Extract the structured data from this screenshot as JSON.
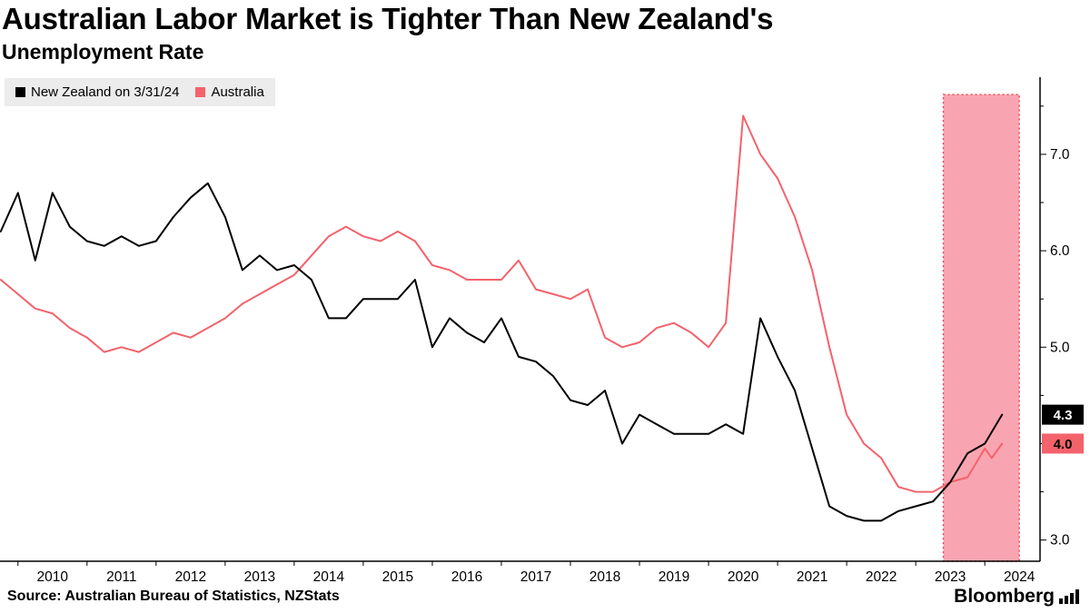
{
  "header": {
    "title": "Australian Labor Market is Tighter Than New Zealand's",
    "subtitle": "Unemployment Rate"
  },
  "legend": {
    "items": [
      {
        "id": "new-zealand",
        "label": "New Zealand on 3/31/24",
        "color": "#000000"
      },
      {
        "id": "australia",
        "label": "Australia",
        "color": "#f4626b"
      }
    ]
  },
  "chart_data": {
    "type": "line",
    "title": "Australian Labor Market is Tighter Than New Zealand's",
    "subtitle": "Unemployment Rate",
    "xlim": [
      2009.74,
      2024.8
    ],
    "ylim": [
      2.78,
      7.8
    ],
    "x_axis": {
      "tick_years": [
        2010,
        2011,
        2012,
        2013,
        2014,
        2015,
        2016,
        2017,
        2018,
        2019,
        2020,
        2021,
        2022,
        2023,
        2024
      ]
    },
    "y_axis": {
      "position": "right",
      "major_ticks": [
        3.0,
        4.0,
        5.0,
        6.0,
        7.0
      ],
      "major_labels": [
        "3.0",
        "4.0",
        "5.0",
        "6.0",
        "7.0"
      ],
      "minor_ticks": [
        3.5,
        4.5,
        5.5,
        6.5,
        7.5
      ]
    },
    "highlight_band": {
      "x_start": 2023.4,
      "x_end": 2024.5,
      "top_value": 7.62,
      "fill": "#f9a5b1",
      "border": "#e8404f"
    },
    "series": [
      {
        "name": "Australia",
        "color": "#f4626b",
        "end_label": "4.0",
        "badge_text_color": "#000000",
        "points": [
          [
            2009.75,
            5.7
          ],
          [
            2010.0,
            5.55
          ],
          [
            2010.25,
            5.4
          ],
          [
            2010.5,
            5.35
          ],
          [
            2010.75,
            5.2
          ],
          [
            2011.0,
            5.1
          ],
          [
            2011.25,
            4.95
          ],
          [
            2011.5,
            5.0
          ],
          [
            2011.75,
            4.95
          ],
          [
            2012.0,
            5.05
          ],
          [
            2012.25,
            5.15
          ],
          [
            2012.5,
            5.1
          ],
          [
            2012.75,
            5.2
          ],
          [
            2013.0,
            5.3
          ],
          [
            2013.25,
            5.45
          ],
          [
            2013.5,
            5.55
          ],
          [
            2013.75,
            5.65
          ],
          [
            2014.0,
            5.75
          ],
          [
            2014.25,
            5.95
          ],
          [
            2014.5,
            6.15
          ],
          [
            2014.75,
            6.25
          ],
          [
            2015.0,
            6.15
          ],
          [
            2015.25,
            6.1
          ],
          [
            2015.5,
            6.2
          ],
          [
            2015.75,
            6.1
          ],
          [
            2016.0,
            5.85
          ],
          [
            2016.25,
            5.8
          ],
          [
            2016.5,
            5.7
          ],
          [
            2016.75,
            5.7
          ],
          [
            2017.0,
            5.7
          ],
          [
            2017.25,
            5.9
          ],
          [
            2017.5,
            5.6
          ],
          [
            2017.75,
            5.55
          ],
          [
            2018.0,
            5.5
          ],
          [
            2018.25,
            5.6
          ],
          [
            2018.5,
            5.1
          ],
          [
            2018.75,
            5.0
          ],
          [
            2019.0,
            5.05
          ],
          [
            2019.25,
            5.2
          ],
          [
            2019.5,
            5.25
          ],
          [
            2019.75,
            5.15
          ],
          [
            2020.0,
            5.0
          ],
          [
            2020.25,
            5.25
          ],
          [
            2020.5,
            7.4
          ],
          [
            2020.75,
            7.0
          ],
          [
            2021.0,
            6.75
          ],
          [
            2021.25,
            6.35
          ],
          [
            2021.5,
            5.8
          ],
          [
            2021.75,
            5.0
          ],
          [
            2022.0,
            4.3
          ],
          [
            2022.25,
            4.0
          ],
          [
            2022.5,
            3.85
          ],
          [
            2022.75,
            3.55
          ],
          [
            2023.0,
            3.5
          ],
          [
            2023.25,
            3.5
          ],
          [
            2023.5,
            3.6
          ],
          [
            2023.75,
            3.65
          ],
          [
            2024.0,
            3.95
          ],
          [
            2024.1,
            3.85
          ],
          [
            2024.25,
            4.0
          ]
        ]
      },
      {
        "name": "New Zealand",
        "color": "#000000",
        "end_label": "4.3",
        "badge_text_color": "#ffffff",
        "points": [
          [
            2009.75,
            6.2
          ],
          [
            2010.0,
            6.6
          ],
          [
            2010.25,
            5.9
          ],
          [
            2010.5,
            6.6
          ],
          [
            2010.75,
            6.25
          ],
          [
            2011.0,
            6.1
          ],
          [
            2011.25,
            6.05
          ],
          [
            2011.5,
            6.15
          ],
          [
            2011.75,
            6.05
          ],
          [
            2012.0,
            6.1
          ],
          [
            2012.25,
            6.35
          ],
          [
            2012.5,
            6.55
          ],
          [
            2012.75,
            6.7
          ],
          [
            2013.0,
            6.35
          ],
          [
            2013.25,
            5.8
          ],
          [
            2013.5,
            5.95
          ],
          [
            2013.75,
            5.8
          ],
          [
            2014.0,
            5.85
          ],
          [
            2014.25,
            5.7
          ],
          [
            2014.5,
            5.3
          ],
          [
            2014.75,
            5.3
          ],
          [
            2015.0,
            5.5
          ],
          [
            2015.25,
            5.5
          ],
          [
            2015.5,
            5.5
          ],
          [
            2015.75,
            5.7
          ],
          [
            2016.0,
            5.0
          ],
          [
            2016.25,
            5.3
          ],
          [
            2016.5,
            5.15
          ],
          [
            2016.75,
            5.05
          ],
          [
            2017.0,
            5.3
          ],
          [
            2017.25,
            4.9
          ],
          [
            2017.5,
            4.85
          ],
          [
            2017.75,
            4.7
          ],
          [
            2018.0,
            4.45
          ],
          [
            2018.25,
            4.4
          ],
          [
            2018.5,
            4.55
          ],
          [
            2018.75,
            4.0
          ],
          [
            2019.0,
            4.3
          ],
          [
            2019.25,
            4.2
          ],
          [
            2019.5,
            4.1
          ],
          [
            2019.75,
            4.1
          ],
          [
            2020.0,
            4.1
          ],
          [
            2020.25,
            4.2
          ],
          [
            2020.5,
            4.1
          ],
          [
            2020.75,
            5.3
          ],
          [
            2021.0,
            4.9
          ],
          [
            2021.25,
            4.55
          ],
          [
            2021.5,
            3.95
          ],
          [
            2021.75,
            3.35
          ],
          [
            2022.0,
            3.25
          ],
          [
            2022.25,
            3.2
          ],
          [
            2022.5,
            3.2
          ],
          [
            2022.75,
            3.3
          ],
          [
            2023.0,
            3.35
          ],
          [
            2023.25,
            3.4
          ],
          [
            2023.5,
            3.6
          ],
          [
            2023.75,
            3.9
          ],
          [
            2024.0,
            4.0
          ],
          [
            2024.25,
            4.3
          ]
        ]
      }
    ]
  },
  "footer": {
    "source": "Source: Australian Bureau of Statistics, NZStats",
    "brand": "Bloomberg"
  }
}
